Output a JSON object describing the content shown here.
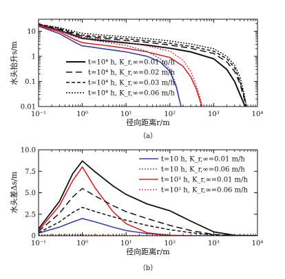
{
  "chart_data": [
    {
      "type": "line",
      "panel_label": "（a）",
      "xlabel": "径向距离r/m",
      "ylabel": "水头抬升s/m",
      "xscale": "log",
      "yscale": "log",
      "xlim": [
        0.1,
        10000
      ],
      "ylim": [
        0.01,
        30
      ],
      "x_ticks": [
        "10⁻¹",
        "10⁰",
        "10¹",
        "10²",
        "10³",
        "10⁴"
      ],
      "y_ticks": [
        "10",
        "1",
        "0.1",
        "0.01"
      ],
      "legend_position": "bottom-left",
      "series": [
        {
          "name": "t=10⁴ h, K_r,∞=0.01 m/h",
          "color": "#111111",
          "dash": "solid",
          "width": 2.0,
          "x": [
            0.1,
            0.3,
            0.7,
            1.0,
            1.5,
            3,
            10,
            30,
            100,
            300,
            1000,
            2000,
            3000,
            4000,
            5000,
            6000
          ],
          "y": [
            18,
            11,
            6.5,
            5.2,
            4.8,
            4.2,
            3.4,
            2.8,
            2.1,
            1.5,
            0.8,
            0.3,
            0.1,
            0.03,
            0.012,
            0.005
          ]
        },
        {
          "name": "t=10⁴ h, K_r,∞=0.02 m/h",
          "color": "#111111",
          "dash": "9,5",
          "width": 1.5,
          "x": [
            0.1,
            0.3,
            0.7,
            1.0,
            1.5,
            3,
            10,
            30,
            100,
            300,
            1000,
            2000,
            3000,
            4000,
            5000,
            6000
          ],
          "y": [
            18,
            12,
            7.5,
            6.3,
            5.9,
            5.2,
            4.3,
            3.6,
            2.8,
            2.1,
            1.3,
            0.6,
            0.25,
            0.08,
            0.02,
            0.005
          ]
        },
        {
          "name": "t=10⁴ h, K_r,∞=0.03 m/h",
          "color": "#111111",
          "dash": "5,3",
          "width": 1.5,
          "x": [
            0.1,
            0.3,
            0.7,
            1.0,
            1.5,
            3,
            10,
            30,
            100,
            300,
            1000,
            2000,
            3000,
            4000,
            5000,
            6000
          ],
          "y": [
            19,
            13,
            8.2,
            7.0,
            6.6,
            5.9,
            5.0,
            4.2,
            3.3,
            2.5,
            1.6,
            0.8,
            0.35,
            0.1,
            0.025,
            0.005
          ]
        },
        {
          "name": "t=10⁴ h, K_r,∞=0.06 m/h",
          "color": "#111111",
          "dash": "2,2",
          "width": 1.5,
          "x": [
            0.1,
            0.3,
            0.7,
            1.0,
            1.5,
            3,
            10,
            30,
            100,
            300,
            1000,
            2000,
            3000,
            4000,
            5000,
            6000
          ],
          "y": [
            19,
            14,
            9.5,
            8.3,
            7.8,
            7.0,
            6.0,
            5.1,
            4.1,
            3.1,
            2.0,
            1.0,
            0.45,
            0.15,
            0.03,
            0.005
          ]
        },
        {
          "name": "",
          "color": "#3a3aa8",
          "dash": "solid",
          "width": 1.6,
          "x": [
            0.1,
            0.3,
            0.7,
            1.0,
            1.5,
            3,
            10,
            30,
            60,
            100,
            140,
            170,
            200
          ],
          "y": [
            16,
            8,
            3.5,
            2.6,
            2.4,
            2.0,
            1.5,
            1.0,
            0.6,
            0.25,
            0.06,
            0.015,
            0.005
          ]
        },
        {
          "name": "",
          "color": "#3a3aa8",
          "dash": "2,2",
          "width": 1.3,
          "x": [
            0.1,
            0.3,
            0.7,
            1.0,
            1.5,
            3,
            10,
            30,
            60,
            100,
            140,
            170,
            200
          ],
          "y": [
            16,
            10,
            6,
            5.0,
            4.6,
            3.8,
            2.7,
            1.6,
            0.8,
            0.3,
            0.07,
            0.015,
            0.005
          ]
        },
        {
          "name": "",
          "color": "#e02020",
          "dash": "solid",
          "width": 1.6,
          "x": [
            0.1,
            0.3,
            0.7,
            1.0,
            1.5,
            3,
            10,
            30,
            100,
            200,
            300,
            400,
            500,
            600
          ],
          "y": [
            17,
            9.5,
            4.5,
            3.5,
            3.2,
            2.8,
            2.1,
            1.5,
            0.9,
            0.4,
            0.15,
            0.05,
            0.015,
            0.005
          ]
        },
        {
          "name": "",
          "color": "#e02020",
          "dash": "2,2",
          "width": 1.3,
          "x": [
            0.1,
            0.3,
            0.7,
            1.0,
            1.5,
            3,
            10,
            30,
            100,
            200,
            300,
            400,
            500,
            600
          ],
          "y": [
            17.5,
            11,
            7,
            5.8,
            5.4,
            4.6,
            3.6,
            2.6,
            1.6,
            0.7,
            0.25,
            0.07,
            0.02,
            0.005
          ]
        }
      ]
    },
    {
      "type": "line",
      "panel_label": "（b）",
      "xlabel": "径向距离r/m",
      "ylabel": "水头差Δs/m",
      "xscale": "log",
      "yscale": "linear",
      "xlim": [
        0.1,
        10000
      ],
      "ylim": [
        0,
        10
      ],
      "x_ticks": [
        "10⁻¹",
        "10⁰",
        "10¹",
        "10²",
        "10³",
        "10⁴"
      ],
      "y_ticks": [
        "0",
        "2.5",
        "5.0",
        "7.5",
        "10.0"
      ],
      "legend_position": "top-right",
      "series": [
        {
          "name": "t=10 h, K_r,∞=0.01 m/h",
          "color": "#3a3aa8",
          "dash": "solid",
          "width": 1.6,
          "show_legend": true,
          "x": [
            0.1,
            0.3,
            0.6,
            1.0,
            2,
            5,
            10,
            30,
            100,
            300,
            1000
          ],
          "y": [
            0.3,
            1.0,
            1.6,
            2.0,
            1.6,
            1.0,
            0.6,
            0.25,
            0.05,
            0.01,
            0
          ]
        },
        {
          "name": "t=10 h, K_r,∞=0.06 m/h",
          "color": "#3a3aa8",
          "dash": "2,2",
          "width": 1.3,
          "show_legend": true,
          "x": [
            0.1,
            0.3,
            0.6,
            1.0,
            2,
            5,
            10,
            30,
            100,
            300
          ],
          "y": [
            0.1,
            0.1,
            0.1,
            0.1,
            0.08,
            0.05,
            0.03,
            0.01,
            0,
            0
          ]
        },
        {
          "name": "t=10² h, K_r,∞=0.01 m/h",
          "color": "#e02020",
          "dash": "solid",
          "width": 1.6,
          "show_legend": true,
          "x": [
            0.1,
            0.3,
            0.6,
            1.0,
            2,
            5,
            10,
            30,
            100,
            300
          ],
          "y": [
            0.6,
            3.5,
            6.4,
            8.0,
            5.5,
            2.8,
            1.4,
            0.35,
            0.03,
            0
          ]
        },
        {
          "name": "t=10² h, K_r,∞=0.06 m/h",
          "color": "#e02020",
          "dash": "2,2",
          "width": 1.3,
          "show_legend": true,
          "x": [
            0.1,
            0.3,
            0.6,
            1.0,
            2,
            5,
            10,
            30,
            100,
            300
          ],
          "y": [
            0.1,
            0.1,
            0.1,
            0.1,
            0.08,
            0.05,
            0.03,
            0.01,
            0,
            0
          ]
        },
        {
          "name": "",
          "color": "#111111",
          "dash": "solid",
          "width": 1.8,
          "show_legend": false,
          "x": [
            0.1,
            0.3,
            0.6,
            1.0,
            2,
            5,
            10,
            30,
            100,
            300,
            1000,
            3000,
            10000
          ],
          "y": [
            0.8,
            4.0,
            7.2,
            8.7,
            7.4,
            5.8,
            4.8,
            3.7,
            2.9,
            1.7,
            0.45,
            0.05,
            0
          ]
        },
        {
          "name": "",
          "color": "#111111",
          "dash": "9,5",
          "width": 1.5,
          "show_legend": false,
          "x": [
            0.1,
            0.3,
            0.6,
            1.0,
            2,
            5,
            10,
            30,
            100,
            300,
            1000,
            3000,
            10000
          ],
          "y": [
            0.5,
            2.6,
            4.5,
            5.5,
            4.6,
            3.5,
            2.8,
            2.0,
            1.2,
            0.6,
            0.15,
            0.02,
            0
          ]
        },
        {
          "name": "",
          "color": "#111111",
          "dash": "5,3",
          "width": 1.5,
          "show_legend": false,
          "x": [
            0.1,
            0.3,
            0.6,
            1.0,
            2,
            5,
            10,
            30,
            100,
            300,
            1000,
            3000,
            10000
          ],
          "y": [
            0.35,
            1.6,
            2.7,
            3.3,
            2.8,
            2.2,
            1.8,
            1.2,
            0.7,
            0.35,
            0.1,
            0.01,
            0
          ]
        }
      ]
    }
  ]
}
